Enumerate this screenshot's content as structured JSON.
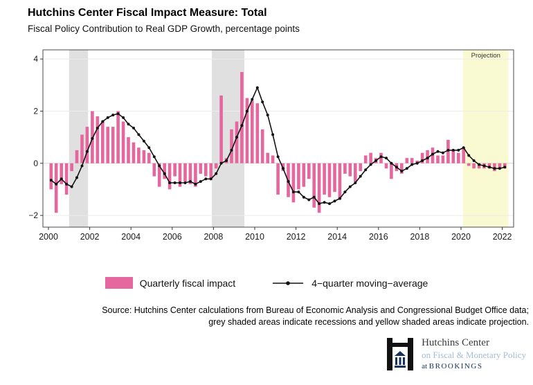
{
  "header": {
    "title": "Hutchins Center Fiscal Impact Measure: Total",
    "subtitle": "Fiscal Policy Contribution to Real GDP Growth, percentage points"
  },
  "chart_data": {
    "type": "bar+line",
    "title": "Hutchins Center Fiscal Impact Measure: Total",
    "subtitle": "Fiscal Policy Contribution to Real GDP Growth, percentage points",
    "xlabel": "",
    "ylabel": "",
    "ylim": [
      -2.45,
      4.35
    ],
    "yticks": [
      -2,
      0,
      2,
      4
    ],
    "xticks": [
      2000,
      2002,
      2004,
      2006,
      2008,
      2010,
      2012,
      2014,
      2016,
      2018,
      2020,
      2022
    ],
    "x_start": 2000.125,
    "x_step": 0.25,
    "grid": "horizontal",
    "legend_position": "bottom",
    "bar_series": {
      "name": "Quarterly fiscal impact",
      "color": "#e5679e",
      "values": [
        -1.0,
        -1.9,
        -0.8,
        -1.2,
        -0.3,
        0.5,
        1.1,
        1.4,
        2.0,
        1.8,
        1.6,
        1.4,
        1.4,
        2.0,
        1.6,
        1.0,
        0.8,
        0.6,
        0.5,
        0.4,
        -0.5,
        -0.9,
        -0.6,
        -1.0,
        -0.5,
        -0.9,
        -0.7,
        -0.8,
        -0.9,
        -0.4,
        -0.5,
        -0.6,
        -0.2,
        2.6,
        0.2,
        1.3,
        1.6,
        3.5,
        2.5,
        2.4,
        2.3,
        1.3,
        0.4,
        0.3,
        -1.2,
        -0.3,
        -1.3,
        -1.5,
        -1.0,
        -0.9,
        -0.6,
        -1.7,
        -1.9,
        -1.2,
        -1.3,
        -1.1,
        -1.4,
        -0.4,
        -0.5,
        -0.7,
        -0.3,
        0.3,
        0.4,
        0.2,
        0.4,
        -0.2,
        -0.6,
        -0.3,
        -0.4,
        0.2,
        0.2,
        0.1,
        0.4,
        0.5,
        0.6,
        0.3,
        0.3,
        0.9,
        0.5,
        0.4,
        0.6,
        -0.1,
        -0.2,
        -0.2,
        -0.2,
        -0.2,
        -0.3,
        -0.2,
        -0.2
      ]
    },
    "line_series": {
      "name": "4-quarter moving-average",
      "color": "#121212",
      "values": [
        -0.65,
        -0.8,
        -0.6,
        -0.8,
        -0.9,
        -0.55,
        -0.1,
        0.45,
        0.95,
        1.35,
        1.6,
        1.75,
        1.85,
        1.9,
        1.75,
        1.5,
        1.35,
        1.1,
        0.85,
        0.6,
        0.25,
        -0.1,
        -0.4,
        -0.75,
        -0.75,
        -0.75,
        -0.75,
        -0.7,
        -0.8,
        -0.7,
        -0.6,
        -0.6,
        -0.4,
        0.0,
        0.1,
        0.5,
        1.0,
        1.45,
        2.0,
        2.45,
        2.9,
        2.35,
        1.85,
        1.1,
        0.25,
        -0.2,
        -0.7,
        -1.1,
        -1.1,
        -1.3,
        -1.4,
        -1.3,
        -1.55,
        -1.5,
        -1.55,
        -1.45,
        -1.35,
        -1.1,
        -0.9,
        -0.75,
        -0.5,
        -0.25,
        -0.05,
        0.1,
        0.25,
        0.2,
        0.0,
        -0.15,
        -0.3,
        -0.2,
        -0.05,
        0.0,
        0.1,
        0.2,
        0.35,
        0.45,
        0.4,
        0.5,
        0.5,
        0.5,
        0.6,
        0.3,
        0.1,
        -0.05,
        -0.1,
        -0.15,
        -0.2,
        -0.2,
        -0.15
      ]
    },
    "regions": [
      {
        "kind": "recession",
        "start": 2001.0,
        "end": 2001.92,
        "color": "#e0e0e0"
      },
      {
        "kind": "recession",
        "start": 2007.92,
        "end": 2009.5,
        "color": "#e0e0e0"
      },
      {
        "kind": "projection",
        "start": 2020.1,
        "end": 2022.3,
        "color": "#fafad2",
        "label": "Projection"
      }
    ]
  },
  "legend": {
    "bar_label": "Quarterly fiscal impact",
    "line_label": "4−quarter moving−average"
  },
  "source": {
    "line1": "Source: Hutchins Center calculations from Bureau of Economic Analysis and Congressional Budget Office data;",
    "line2": "grey shaded areas indicate recessions and yellow shaded areas indicate projection."
  },
  "logo": {
    "line1": "Hutchins Center",
    "line2": "on Fiscal & Monetary Policy",
    "line3_prefix": "at ",
    "line3": "BROOKINGS"
  }
}
